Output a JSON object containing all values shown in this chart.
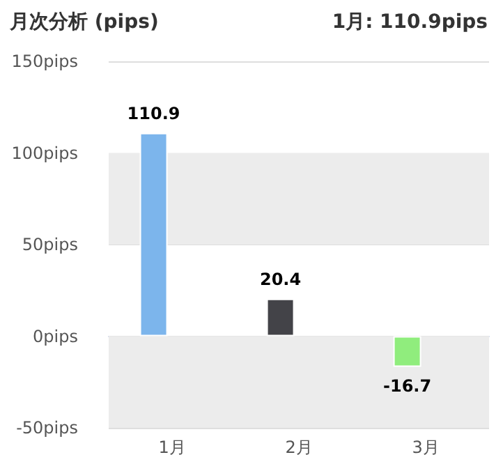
{
  "chart_data": {
    "type": "bar",
    "title": "月次分析 (pips)",
    "subtitle": "1月: 110.9pips",
    "categories": [
      "1月",
      "2月",
      "3月"
    ],
    "values": [
      110.9,
      20.4,
      -16.7
    ],
    "colors": [
      "#7cb5ec",
      "#434348",
      "#90ed7d"
    ],
    "ylim": [
      -50,
      150
    ],
    "yticks": [
      {
        "value": -50,
        "label": "-50pips"
      },
      {
        "value": 0,
        "label": "0pips"
      },
      {
        "value": 50,
        "label": "50pips"
      },
      {
        "value": 100,
        "label": "100pips"
      },
      {
        "value": 150,
        "label": "150pips"
      }
    ],
    "bands": [
      {
        "axis": "y",
        "from": 50,
        "to": 100,
        "color": "#ececec"
      },
      {
        "axis": "y",
        "from": -50,
        "to": 0,
        "color": "#ececec"
      }
    ],
    "grid": "y",
    "data_labels": true
  }
}
